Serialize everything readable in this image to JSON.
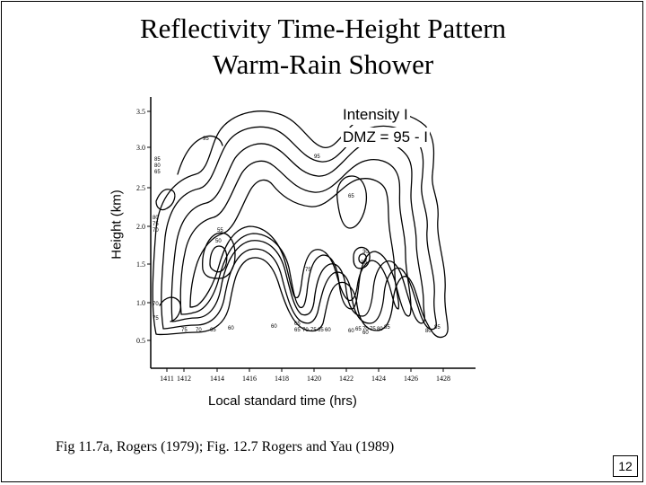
{
  "slide": {
    "title_line1": "Reflectivity Time-Height Pattern",
    "title_line2": "Warm-Rain Shower",
    "caption": "Fig 11.7a, Rogers (1979); Fig. 12.7 Rogers and Yau (1989)",
    "page_number": "12"
  },
  "diagram": {
    "annotation_line1": "Intensity I",
    "annotation_line2": "DMZ = 95 - I",
    "ylabel": "Height (km)",
    "xlabel": "Local standard time (hrs)",
    "y_ticks": [
      "3.5",
      "3.0",
      "2.5",
      "2.0",
      "1.5",
      "1.0",
      "0.5"
    ],
    "x_ticks": [
      "1411",
      "1412",
      "1414",
      "1416",
      "1418",
      "1420",
      "1422",
      "1424",
      "1426",
      "1428"
    ],
    "contour_labels": [
      "95",
      "95",
      "85",
      "80",
      "65",
      "65",
      "80",
      "75",
      "70",
      "55",
      "50",
      "30",
      "30",
      "75",
      "70",
      "75",
      "75",
      "70",
      "65",
      "60",
      "60",
      "65",
      "70",
      "75",
      "65",
      "60",
      "60",
      "65",
      "70",
      "75",
      "80",
      "85",
      "80",
      "85",
      "60",
      "65"
    ]
  }
}
